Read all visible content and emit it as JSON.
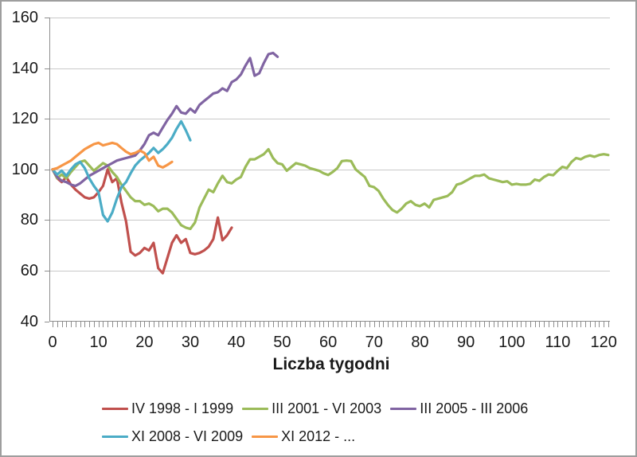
{
  "window": {
    "background": "#ffffff",
    "border_color": "#9e9e9e"
  },
  "styles": {
    "gridline_color": "#c9c9c9",
    "axis_color": "#8e8e8e",
    "tick_color": "#8e8e8e",
    "text_color": "#1a1a1a"
  },
  "chart_data": {
    "type": "line",
    "title": "",
    "xlabel": "Liczba tygodni",
    "ylabel": "",
    "x_unit": "weeks",
    "xlim": [
      0,
      122
    ],
    "ylim": [
      40,
      160
    ],
    "x_ticks": [
      0,
      10,
      20,
      30,
      40,
      50,
      60,
      70,
      80,
      90,
      100,
      110,
      120
    ],
    "y_ticks": [
      40,
      60,
      80,
      100,
      120,
      140,
      160
    ],
    "x_minor_tick_interval": 1,
    "grid": "horizontal-major",
    "legend_position": "bottom",
    "legend_rows": [
      [
        0,
        1,
        2
      ],
      [
        3,
        4
      ]
    ],
    "series": [
      {
        "name": "IV 1998 - I 1999",
        "color": "#C0504D",
        "x_start": 0,
        "values": [
          100,
          96.5,
          95,
          97,
          94,
          92,
          90.5,
          89,
          88.5,
          89,
          91,
          93.5,
          100,
          95,
          96.5,
          87,
          79.5,
          67.5,
          66,
          67,
          69,
          68,
          71,
          61,
          59,
          65,
          71,
          74,
          71,
          72.5,
          67,
          66.5,
          67,
          68,
          69.5,
          72.5,
          81,
          72,
          74,
          77
        ]
      },
      {
        "name": "III 2001 - VI 2003",
        "color": "#9BBB59",
        "x_start": 0,
        "values": [
          100,
          96.5,
          98,
          96.5,
          99,
          101,
          103,
          103.5,
          101.5,
          99.5,
          101,
          102.5,
          101.5,
          99,
          97,
          94,
          91.5,
          89,
          87.5,
          87.5,
          86,
          86.5,
          85.5,
          83.5,
          84.5,
          84.5,
          83,
          80.5,
          78,
          77,
          76.5,
          79,
          85,
          88.5,
          92,
          91,
          94.5,
          97.5,
          95,
          94.5,
          96,
          97,
          101,
          104,
          104,
          105,
          106,
          108,
          104.5,
          102.5,
          102,
          99.5,
          101,
          102.5,
          102,
          101.5,
          100.5,
          100,
          99.5,
          98.5,
          97.8,
          99,
          100.5,
          103.3,
          103.5,
          103.3,
          100,
          98.5,
          97,
          93.5,
          93,
          91.5,
          88.5,
          86,
          84,
          83,
          84.5,
          86.5,
          87.5,
          86,
          85.5,
          86.5,
          85,
          88,
          88.5,
          89,
          89.5,
          91,
          94,
          94.5,
          95.5,
          96.5,
          97.5,
          97.5,
          98,
          96.5,
          96,
          95.5,
          95,
          95.3,
          94,
          94.3,
          94,
          94,
          94.3,
          96,
          95.5,
          97,
          98,
          97.7,
          99.5,
          101,
          100.5,
          103,
          104.5,
          104,
          105,
          105.5,
          105,
          105.7,
          106,
          105.7
        ]
      },
      {
        "name": "III 2005 - III 2006",
        "color": "#8064A2",
        "x_start": 0,
        "values": [
          100,
          97,
          95.5,
          95,
          94,
          93.5,
          94.5,
          96,
          97.5,
          98.5,
          99.5,
          100.5,
          101.5,
          102.5,
          103.5,
          104,
          104.5,
          105,
          105.5,
          107.5,
          110,
          113.5,
          114.5,
          113.5,
          116.5,
          119.5,
          122,
          125,
          122.5,
          122,
          124,
          122.5,
          125.5,
          127,
          128.5,
          130,
          130.5,
          132,
          131,
          134.5,
          135.5,
          137.5,
          141,
          144,
          137,
          138,
          142,
          145.5,
          146,
          144.5
        ]
      },
      {
        "name": "XI 2008 - VI 2009",
        "color": "#4BACC6",
        "x_start": 0,
        "values": [
          100,
          98,
          99.5,
          97.5,
          100,
          102,
          103,
          100.5,
          96.5,
          93.5,
          91,
          82,
          79.5,
          83,
          88.5,
          93,
          95,
          98.5,
          101.5,
          103.5,
          105,
          106.5,
          108.5,
          106.5,
          108,
          110,
          112.5,
          116,
          119,
          115.5,
          111.5
        ]
      },
      {
        "name": "XI 2012 - ...",
        "color": "#F79646",
        "x_start": 0,
        "values": [
          100,
          100.5,
          101.5,
          102.5,
          103.5,
          105,
          106.5,
          108,
          109,
          110,
          110.5,
          109.5,
          110,
          110.5,
          110,
          108.5,
          107,
          106,
          106.5,
          107.5,
          106.5,
          103.5,
          105,
          101.5,
          100.8,
          101.8,
          103
        ]
      }
    ]
  }
}
